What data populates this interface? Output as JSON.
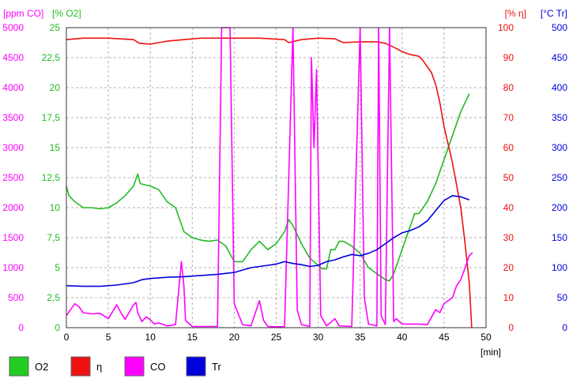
{
  "chart_data": {
    "type": "line",
    "x_axis": {
      "label": "[min]",
      "range": [
        0,
        50
      ],
      "ticks": [
        "0",
        "5",
        "10",
        "15",
        "20",
        "25",
        "30",
        "35",
        "40",
        "45",
        "50"
      ]
    },
    "axes": [
      {
        "id": "co",
        "label": "[ppm CO]",
        "color": "#ff00ff",
        "side": "left",
        "range": [
          0,
          5000
        ],
        "ticks": [
          "0",
          "500",
          "1000",
          "1500",
          "2000",
          "2500",
          "3000",
          "3500",
          "4000",
          "4500",
          "5000"
        ]
      },
      {
        "id": "o2",
        "label": "[% O2]",
        "color": "#22bb22",
        "side": "left",
        "range": [
          0,
          25
        ],
        "ticks": [
          "0",
          "2,5",
          "5",
          "7,5",
          "10",
          "12,5",
          "15",
          "17,5",
          "20",
          "22,5",
          "25"
        ]
      },
      {
        "id": "eta",
        "label": "[% η]",
        "color": "#ee1111",
        "side": "right",
        "range": [
          0,
          100
        ],
        "ticks": [
          "0",
          "10",
          "20",
          "30",
          "40",
          "50",
          "60",
          "70",
          "80",
          "90",
          "100"
        ]
      },
      {
        "id": "tr",
        "label": "[°C Tr]",
        "color": "#0000dd",
        "side": "right",
        "range": [
          0,
          500
        ],
        "ticks": [
          "0",
          "50",
          "100",
          "150",
          "200",
          "250",
          "300",
          "350",
          "400",
          "450",
          "500"
        ]
      }
    ],
    "grid": true,
    "legend": [
      {
        "name": "O2",
        "color": "#22cc22"
      },
      {
        "name": "η",
        "color": "#ee1111"
      },
      {
        "name": "CO",
        "color": "#ff00ff"
      },
      {
        "name": "Tr",
        "color": "#0000dd"
      }
    ],
    "series": [
      {
        "name": "O2",
        "axis": "o2",
        "color": "#22bb22",
        "points": [
          [
            0,
            11.8
          ],
          [
            0.3,
            11
          ],
          [
            1,
            10.5
          ],
          [
            2,
            10
          ],
          [
            3,
            10
          ],
          [
            4,
            9.9
          ],
          [
            5,
            10
          ],
          [
            6,
            10.4
          ],
          [
            7,
            11
          ],
          [
            8,
            11.8
          ],
          [
            8.5,
            12.8
          ],
          [
            8.8,
            12
          ],
          [
            10,
            11.8
          ],
          [
            11,
            11.5
          ],
          [
            12,
            10.5
          ],
          [
            13,
            10
          ],
          [
            13.5,
            9
          ],
          [
            14,
            8
          ],
          [
            15,
            7.5
          ],
          [
            16,
            7.3
          ],
          [
            17,
            7.2
          ],
          [
            18,
            7.3
          ],
          [
            19,
            6.8
          ],
          [
            20,
            5.5
          ],
          [
            21,
            5.5
          ],
          [
            22,
            6.5
          ],
          [
            23,
            7.2
          ],
          [
            24,
            6.5
          ],
          [
            25,
            7
          ],
          [
            26,
            8
          ],
          [
            26.5,
            9
          ],
          [
            27,
            8.5
          ],
          [
            28,
            7
          ],
          [
            29,
            5.8
          ],
          [
            30,
            5.2
          ],
          [
            30.5,
            4.9
          ],
          [
            31,
            4.9
          ],
          [
            31.5,
            6.5
          ],
          [
            32,
            6.5
          ],
          [
            32.5,
            7.2
          ],
          [
            33,
            7.2
          ],
          [
            34,
            6.8
          ],
          [
            35,
            6.2
          ],
          [
            36,
            5
          ],
          [
            37,
            4.5
          ],
          [
            38,
            4
          ],
          [
            38.5,
            3.9
          ],
          [
            39,
            4.5
          ],
          [
            40,
            6.5
          ],
          [
            41,
            8.5
          ],
          [
            41.5,
            9.5
          ],
          [
            42,
            9.5
          ],
          [
            43,
            10.5
          ],
          [
            44,
            12
          ],
          [
            45,
            14
          ],
          [
            46,
            16
          ],
          [
            47,
            18
          ],
          [
            48,
            19.5
          ]
        ]
      },
      {
        "name": "η",
        "axis": "eta",
        "color": "#ee1111",
        "points": [
          [
            0,
            96
          ],
          [
            2,
            96.5
          ],
          [
            5,
            96.5
          ],
          [
            8,
            96
          ],
          [
            8.7,
            94.8
          ],
          [
            10,
            94.5
          ],
          [
            12,
            95.5
          ],
          [
            14,
            96
          ],
          [
            16,
            96.5
          ],
          [
            20,
            96.5
          ],
          [
            23,
            96.5
          ],
          [
            26,
            96
          ],
          [
            26.5,
            95
          ],
          [
            28,
            96
          ],
          [
            30,
            96.5
          ],
          [
            32,
            96.3
          ],
          [
            33,
            95
          ],
          [
            35,
            95.3
          ],
          [
            37,
            95.3
          ],
          [
            38,
            94.8
          ],
          [
            39,
            93.5
          ],
          [
            40,
            92
          ],
          [
            41,
            91
          ],
          [
            42,
            90.5
          ],
          [
            42.5,
            89
          ],
          [
            43,
            87
          ],
          [
            43.5,
            85
          ],
          [
            44,
            81
          ],
          [
            44.5,
            75
          ],
          [
            45,
            67
          ],
          [
            46,
            55
          ],
          [
            47,
            40
          ],
          [
            47.5,
            28
          ],
          [
            48,
            15
          ],
          [
            48.3,
            0
          ]
        ]
      },
      {
        "name": "CO",
        "axis": "co",
        "color": "#ff00ff",
        "points": [
          [
            0,
            200
          ],
          [
            0.5,
            300
          ],
          [
            1,
            400
          ],
          [
            1.5,
            350
          ],
          [
            2,
            250
          ],
          [
            3,
            230
          ],
          [
            4,
            240
          ],
          [
            5,
            150
          ],
          [
            6,
            380
          ],
          [
            6.5,
            250
          ],
          [
            7,
            140
          ],
          [
            8,
            380
          ],
          [
            8.3,
            420
          ],
          [
            8.5,
            250
          ],
          [
            9,
            100
          ],
          [
            9.5,
            180
          ],
          [
            10,
            130
          ],
          [
            10.5,
            60
          ],
          [
            11,
            80
          ],
          [
            12,
            30
          ],
          [
            13,
            50
          ],
          [
            13.7,
            1100
          ],
          [
            14,
            700
          ],
          [
            14.2,
            120
          ],
          [
            15,
            20
          ],
          [
            17,
            20
          ],
          [
            18,
            20
          ],
          [
            18.5,
            5000
          ],
          [
            19,
            5000
          ],
          [
            19.5,
            5000
          ],
          [
            20,
            400
          ],
          [
            21,
            50
          ],
          [
            22,
            30
          ],
          [
            23,
            450
          ],
          [
            23.5,
            120
          ],
          [
            24,
            20
          ],
          [
            25,
            15
          ],
          [
            26,
            20
          ],
          [
            27,
            5000
          ],
          [
            27.5,
            300
          ],
          [
            28,
            50
          ],
          [
            29,
            20
          ],
          [
            29.2,
            4500
          ],
          [
            29.5,
            3000
          ],
          [
            29.8,
            4300
          ],
          [
            30.3,
            200
          ],
          [
            31,
            30
          ],
          [
            32,
            150
          ],
          [
            32.5,
            30
          ],
          [
            34,
            20
          ],
          [
            35,
            5000
          ],
          [
            35.5,
            500
          ],
          [
            36,
            60
          ],
          [
            37,
            30
          ],
          [
            37.2,
            5000
          ],
          [
            37.5,
            200
          ],
          [
            38,
            50
          ],
          [
            38.5,
            5000
          ],
          [
            39,
            100
          ],
          [
            39.3,
            150
          ],
          [
            40,
            60
          ],
          [
            42,
            60
          ],
          [
            43,
            50
          ],
          [
            44,
            300
          ],
          [
            44.5,
            250
          ],
          [
            45,
            400
          ],
          [
            46,
            500
          ],
          [
            46.5,
            700
          ],
          [
            47,
            800
          ],
          [
            47.5,
            1000
          ],
          [
            48,
            1200
          ],
          [
            48.4,
            1250
          ]
        ]
      },
      {
        "name": "Tr",
        "axis": "tr",
        "color": "#0000dd",
        "points": [
          [
            0,
            70
          ],
          [
            2,
            69
          ],
          [
            4,
            69
          ],
          [
            6,
            71
          ],
          [
            8,
            75
          ],
          [
            9,
            80
          ],
          [
            10,
            82
          ],
          [
            12,
            84
          ],
          [
            14,
            85
          ],
          [
            16,
            87
          ],
          [
            18,
            89
          ],
          [
            20,
            92
          ],
          [
            21,
            96
          ],
          [
            22,
            100
          ],
          [
            24,
            104
          ],
          [
            25,
            106
          ],
          [
            26,
            110
          ],
          [
            27,
            107
          ],
          [
            28,
            105
          ],
          [
            29,
            102
          ],
          [
            30,
            104
          ],
          [
            31,
            110
          ],
          [
            32,
            113
          ],
          [
            33,
            118
          ],
          [
            34,
            122
          ],
          [
            35,
            120
          ],
          [
            36,
            124
          ],
          [
            37,
            130
          ],
          [
            38,
            140
          ],
          [
            39,
            150
          ],
          [
            40,
            158
          ],
          [
            41,
            162
          ],
          [
            42,
            168
          ],
          [
            43,
            178
          ],
          [
            44,
            195
          ],
          [
            45,
            212
          ],
          [
            46,
            220
          ],
          [
            47,
            218
          ],
          [
            48,
            213
          ]
        ]
      }
    ]
  }
}
